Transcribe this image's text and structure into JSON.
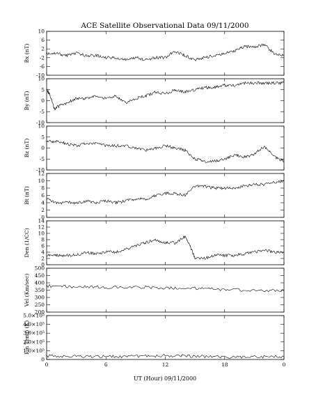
{
  "title": "ACE Satellite Observational Data   09/11/2000",
  "xlabel": "UT (Hour)  09/11/2000",
  "chart_data": [
    {
      "type": "line",
      "ylabel": "Bx (nT)",
      "ylim": [
        -10,
        10
      ],
      "yticks": [
        "10",
        "6",
        "2",
        "-2",
        "-6",
        "-10"
      ],
      "ytick_values": [
        10,
        6,
        2,
        -2,
        -6,
        -10
      ],
      "x": [
        0,
        1,
        2,
        3,
        4,
        5,
        6,
        7,
        8,
        9,
        10,
        11,
        12,
        13,
        14,
        15,
        16,
        17,
        18,
        19,
        20,
        21,
        22,
        23,
        24
      ],
      "series": [
        {
          "values": [
            0,
            0,
            -1,
            0,
            -1,
            -1,
            -2,
            -2,
            -3,
            -2,
            -3,
            -2,
            -2,
            1,
            -1,
            -3,
            -2,
            -1,
            0,
            1,
            3,
            3,
            4,
            0,
            -1
          ]
        }
      ]
    },
    {
      "type": "line",
      "ylabel": "By (nT)",
      "ylim": [
        -10,
        10
      ],
      "yticks": [
        "10",
        "5",
        "0",
        "-5",
        "-10"
      ],
      "ytick_values": [
        10,
        5,
        0,
        -5,
        -10
      ],
      "x": [
        0,
        0.3,
        0.8,
        1,
        2,
        3,
        4,
        5,
        6,
        7,
        8,
        9,
        10,
        11,
        12,
        13,
        14,
        15,
        16,
        17,
        18,
        19,
        20,
        21,
        22,
        23,
        24
      ],
      "series": [
        {
          "values": [
            5,
            3,
            -4,
            -3,
            -1,
            1,
            1,
            2,
            1,
            2,
            -1,
            1,
            2,
            4,
            3,
            5,
            4,
            5,
            6,
            6,
            7,
            7,
            8,
            8,
            8,
            8,
            8
          ]
        }
      ]
    },
    {
      "type": "line",
      "ylabel": "Bz (nT)",
      "ylim": [
        -10,
        10
      ],
      "yticks": [
        "10",
        "5",
        "0",
        "-5",
        "-10"
      ],
      "ytick_values": [
        10,
        5,
        0,
        -5,
        -10
      ],
      "x": [
        0,
        1,
        2,
        3,
        4,
        5,
        6,
        7,
        8,
        9,
        10,
        11,
        12,
        13,
        14,
        15,
        16,
        17,
        18,
        19,
        20,
        21,
        22,
        23,
        24
      ],
      "series": [
        {
          "values": [
            3,
            3,
            2,
            1,
            2,
            2,
            1,
            1,
            1,
            0,
            -1,
            0,
            1,
            0,
            -1,
            -5,
            -6,
            -6,
            -5,
            -3,
            -4,
            -3,
            1,
            -4,
            -6
          ]
        }
      ]
    },
    {
      "type": "line",
      "ylabel": "Bt (nT)",
      "ylim": [
        0,
        12
      ],
      "yticks": [
        "12",
        "10",
        "8",
        "6",
        "4",
        "2",
        "0"
      ],
      "ytick_values": [
        12,
        10,
        8,
        6,
        4,
        2,
        0
      ],
      "x": [
        0,
        1,
        2,
        3,
        4,
        5,
        6,
        7,
        8,
        9,
        10,
        11,
        12,
        13,
        14,
        15,
        16,
        17,
        18,
        19,
        20,
        21,
        22,
        23,
        24
      ],
      "series": [
        {
          "values": [
            5,
            4,
            4,
            4,
            4.5,
            4,
            4.5,
            4,
            4.5,
            5,
            5,
            6,
            6.5,
            6.5,
            6,
            8.5,
            8.5,
            8,
            8,
            8,
            8.5,
            9,
            9,
            9.5,
            10
          ]
        }
      ]
    },
    {
      "type": "line",
      "ylabel": "Den (1/CC)",
      "ylim": [
        0,
        14
      ],
      "yticks": [
        "14",
        "12",
        "10",
        "8",
        "6",
        "4",
        "2",
        "0"
      ],
      "ytick_values": [
        14,
        12,
        10,
        8,
        6,
        4,
        2,
        0
      ],
      "x": [
        0,
        1,
        2,
        3,
        4,
        5,
        6,
        7,
        8,
        9,
        10,
        11,
        12,
        13,
        14,
        14.5,
        15,
        16,
        17,
        18,
        19,
        20,
        21,
        22,
        23,
        24
      ],
      "series": [
        {
          "values": [
            3,
            3,
            3,
            3,
            4,
            3.5,
            4,
            4,
            5,
            6,
            7,
            8,
            7,
            7,
            9,
            6,
            2,
            2,
            3,
            3,
            3,
            3.5,
            4,
            4.5,
            4,
            4
          ]
        }
      ]
    },
    {
      "type": "line",
      "ylabel": "Vel (Km/sec)",
      "ylim": [
        200,
        500
      ],
      "yticks": [
        "500",
        "450",
        "400",
        "350",
        "300",
        "250",
        "200"
      ],
      "ytick_values": [
        500,
        450,
        400,
        350,
        300,
        250,
        200
      ],
      "x": [
        0,
        2,
        4,
        6,
        8,
        10,
        12,
        14,
        16,
        18,
        20,
        22,
        24
      ],
      "series": [
        {
          "values": [
            380,
            375,
            372,
            370,
            368,
            370,
            365,
            365,
            360,
            355,
            350,
            345,
            345
          ]
        }
      ]
    },
    {
      "type": "line",
      "ylabel": "Ion Temp (K)",
      "ylim": [
        0,
        500000
      ],
      "yticks": [
        "5.0×10⁵",
        "4.0×10⁵",
        "3.0×10⁵",
        "2.0×10⁵",
        "1.0×10⁵",
        "0"
      ],
      "ytick_values": [
        500000,
        400000,
        300000,
        200000,
        100000,
        0
      ],
      "x": [
        0,
        2,
        4,
        6,
        8,
        10,
        12,
        14,
        16,
        18,
        20,
        22,
        24
      ],
      "series": [
        {
          "values": [
            40000,
            40000,
            35000,
            35000,
            35000,
            40000,
            45000,
            40000,
            35000,
            30000,
            30000,
            30000,
            35000
          ]
        }
      ]
    }
  ],
  "xticks": [
    "0",
    "6",
    "12",
    "18",
    "0"
  ],
  "xtick_values": [
    0,
    6,
    12,
    18,
    24
  ],
  "xlim": [
    0,
    24
  ]
}
